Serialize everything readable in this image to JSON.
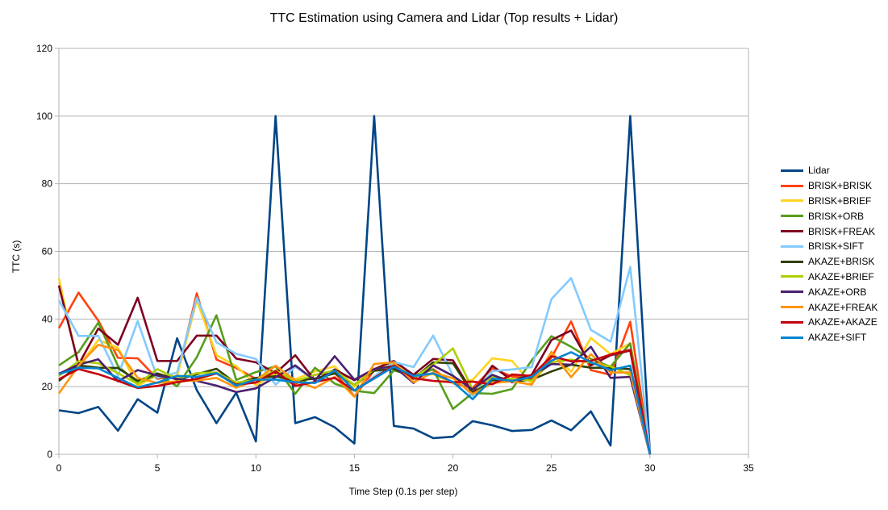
{
  "chart_data": {
    "type": "line",
    "title": "TTC Estimation using Camera and Lidar (Top results + Lidar)",
    "xlabel": "Time Step (0.1s per step)",
    "ylabel": "TTC (s)",
    "xlim": [
      0,
      35
    ],
    "ylim": [
      0,
      120
    ],
    "xticks": [
      0,
      5,
      10,
      15,
      20,
      25,
      30,
      35
    ],
    "yticks": [
      0,
      20,
      40,
      60,
      80,
      100,
      120
    ],
    "grid": "horizontal",
    "legend": "right",
    "x": [
      0,
      1,
      2,
      3,
      4,
      5,
      6,
      7,
      8,
      9,
      10,
      11,
      12,
      13,
      14,
      15,
      16,
      17,
      18,
      19,
      20,
      21,
      22,
      23,
      24,
      25,
      26,
      27,
      28,
      29,
      30
    ],
    "series": [
      {
        "name": "Lidar",
        "color": "#004586",
        "values": [
          13,
          12.2,
          14,
          7,
          16.3,
          12.3,
          34.3,
          19,
          9.2,
          18.2,
          3.8,
          100,
          9.2,
          11,
          8,
          3.2,
          100,
          8.4,
          7.6,
          4.8,
          5.2,
          9.8,
          8.6,
          6.9,
          7.2,
          10,
          7.1,
          12.7,
          2.6,
          100,
          0
        ]
      },
      {
        "name": "BRISK+BRISK",
        "color": "#ff420e",
        "values": [
          37.3,
          47.8,
          39.5,
          28.5,
          28.4,
          22.3,
          23.2,
          47.6,
          28,
          25.5,
          22.3,
          24.2,
          20.8,
          23.5,
          24.2,
          17.1,
          24.8,
          27,
          22.8,
          25.2,
          21,
          19.6,
          25.4,
          23,
          22.5,
          28.6,
          39.3,
          24.9,
          23.5,
          39.2,
          0
        ]
      },
      {
        "name": "BRISK+BRIEF",
        "color": "#ffd320",
        "values": [
          52,
          25.9,
          33.8,
          31.5,
          20.2,
          23.5,
          23,
          45.6,
          29.3,
          26.1,
          20.4,
          23.9,
          22.2,
          24.5,
          26,
          19.9,
          24.9,
          26.9,
          23.2,
          23.7,
          21,
          22,
          28.4,
          27.6,
          20.8,
          30,
          24.4,
          34.4,
          29.6,
          32.8,
          0
        ]
      },
      {
        "name": "BRISK+ORB",
        "color": "#579d1c",
        "values": [
          26.3,
          30.2,
          38.9,
          26.1,
          21,
          23.6,
          20.1,
          28.7,
          41.1,
          22,
          24.3,
          26,
          17.9,
          25.6,
          20.9,
          18.8,
          18.1,
          24.8,
          23.3,
          25.1,
          13.4,
          18.1,
          17.9,
          19.3,
          27.8,
          34.9,
          31.8,
          28.2,
          25.9,
          32.8,
          0
        ]
      },
      {
        "name": "BRISK+FREAK",
        "color": "#7e0021",
        "values": [
          49.9,
          26.5,
          37.2,
          32.4,
          46.3,
          27.6,
          27.6,
          35.1,
          35.1,
          28.3,
          27.2,
          24,
          29.3,
          21.8,
          25.1,
          21.9,
          25.2,
          27.6,
          23.5,
          28.2,
          27.8,
          18.1,
          26.2,
          21.8,
          23.5,
          33.8,
          36.6,
          26.3,
          29.3,
          30.7,
          0
        ]
      },
      {
        "name": "BRISK+SIFT",
        "color": "#83caff",
        "values": [
          45.6,
          35,
          35,
          23.2,
          39.4,
          22.6,
          24.2,
          46.3,
          33.1,
          29.7,
          28.2,
          20.6,
          25.9,
          21.8,
          22.5,
          18.8,
          23,
          27.3,
          25.8,
          35.1,
          23.3,
          17.3,
          24.6,
          25.1,
          25.8,
          45.9,
          52.1,
          36.8,
          33.3,
          55.4,
          0
        ]
      },
      {
        "name": "AKAZE+BRISK",
        "color": "#314004",
        "values": [
          21.7,
          26.3,
          25.6,
          25.5,
          21.7,
          23.9,
          22.1,
          23.7,
          25.3,
          20.9,
          22.6,
          23.1,
          21.7,
          22.4,
          23.9,
          20.6,
          24.7,
          25.3,
          22.3,
          27.2,
          26.9,
          18,
          21.9,
          21.5,
          22.1,
          24.5,
          26.5,
          25.6,
          25.5,
          25.2,
          0
        ]
      },
      {
        "name": "AKAZE+BRIEF",
        "color": "#aecf00",
        "values": [
          23.2,
          27.5,
          26.9,
          24,
          20.8,
          25.2,
          22.3,
          24,
          24.2,
          21.2,
          22,
          24.8,
          21.6,
          23.5,
          24.8,
          20.5,
          25.2,
          26.1,
          22.6,
          26.5,
          31.3,
          19.2,
          22.8,
          22.3,
          21.8,
          27.2,
          28,
          27.1,
          26,
          23.4,
          0
        ]
      },
      {
        "name": "AKAZE+ORB",
        "color": "#4b1f6f",
        "values": [
          23.8,
          26.5,
          28.1,
          21.6,
          24.9,
          23.3,
          22.3,
          21.7,
          20.3,
          18.4,
          19.5,
          22.8,
          26.3,
          21.8,
          29,
          22.1,
          25.2,
          26.1,
          21.1,
          26.3,
          23.2,
          19.2,
          23.5,
          21.3,
          23.1,
          26.7,
          26.5,
          31.8,
          22.6,
          22.9,
          0
        ]
      },
      {
        "name": "AKAZE+FREAK",
        "color": "#ff950e",
        "values": [
          18,
          26.2,
          32.4,
          30.8,
          22.6,
          21.1,
          21.6,
          21.8,
          22.6,
          19.7,
          21.9,
          26.2,
          21.8,
          19.6,
          22.9,
          17,
          26.7,
          27.2,
          21.3,
          24.2,
          22.5,
          17.8,
          21.1,
          21.6,
          20.6,
          30.3,
          22.8,
          29.6,
          24.2,
          24.2,
          0
        ]
      },
      {
        "name": "AKAZE+AKAZE",
        "color": "#c5000b",
        "values": [
          22.2,
          25.2,
          23.7,
          21.7,
          19.6,
          20.2,
          21.3,
          22.3,
          23.9,
          20.6,
          21.2,
          24.6,
          20.2,
          21.4,
          22.6,
          18.9,
          22.6,
          26.3,
          22.5,
          21.7,
          21.3,
          21.5,
          20.7,
          23.6,
          23.2,
          29,
          27.5,
          27.6,
          29.5,
          30.9,
          0
        ]
      },
      {
        "name": "AKAZE+SIFT",
        "color": "#0084d1",
        "values": [
          23.7,
          25.6,
          25.4,
          22.6,
          19.8,
          21.2,
          23.2,
          22.9,
          24,
          20.3,
          22.1,
          22.1,
          21.3,
          21.1,
          24.8,
          18.9,
          22.4,
          25.9,
          23.2,
          23.9,
          21.4,
          16.3,
          22.4,
          21.7,
          22.9,
          27.7,
          30.2,
          27.2,
          24.9,
          26.2,
          0
        ]
      }
    ]
  }
}
